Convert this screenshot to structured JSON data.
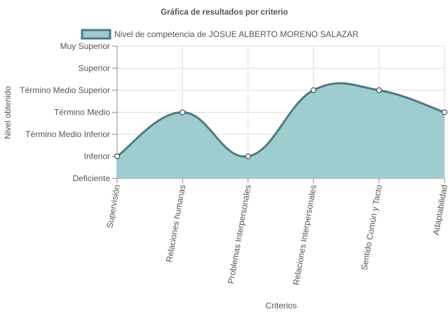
{
  "chart_data": {
    "type": "area",
    "title": "Gráfica de resultados por criterio",
    "xlabel": "Criterios",
    "ylabel": "Nivel obtenido",
    "categories": [
      "Supervisión",
      "Relaciones humanas",
      "Problemas Interpersonales",
      "Relaciones Interpersonales",
      "Sentido Común y Tacto",
      "Adaptabilidad"
    ],
    "y_levels": [
      "Deficiente",
      "Inferior",
      "Término Medio Inferior",
      "Término Medio",
      "Término Medio Superior",
      "Superior",
      "Muy Superior"
    ],
    "series": [
      {
        "name": "Nivel de competencia de JOSUE ALBERTO MORENO SALAZAR",
        "values": [
          1,
          3,
          1,
          4,
          4,
          3
        ]
      }
    ],
    "ylim": [
      0,
      6
    ],
    "grid": true,
    "legend": "top",
    "colors": {
      "fill": "#9ecccf",
      "line": "#4d7a80",
      "grid": "#dddddd",
      "axis": "#888888",
      "text": "#555555"
    }
  }
}
